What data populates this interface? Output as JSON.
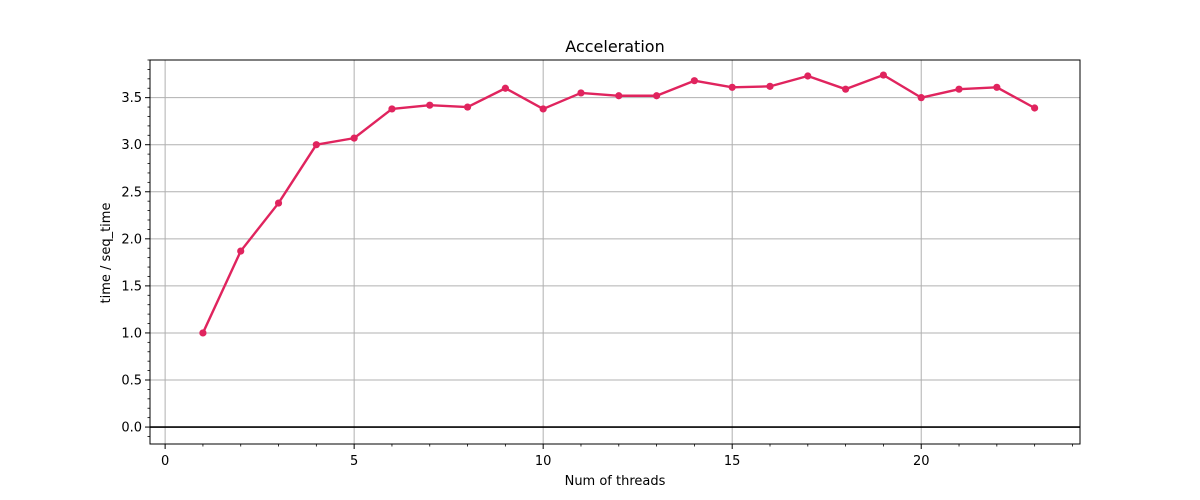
{
  "chart_data": {
    "type": "line",
    "title": "Acceleration",
    "xlabel": "Num of threads",
    "ylabel": "time / seq_time",
    "xlim": [
      -0.4,
      24.2
    ],
    "ylim": [
      -0.18,
      3.9
    ],
    "x_ticks": [
      0,
      5,
      10,
      15,
      20
    ],
    "y_ticks": [
      0.0,
      0.5,
      1.0,
      1.5,
      2.0,
      2.5,
      3.0,
      3.5
    ],
    "x_tick_labels": [
      "0",
      "5",
      "10",
      "15",
      "20"
    ],
    "y_tick_labels": [
      "0.0",
      "0.5",
      "1.0",
      "1.5",
      "2.0",
      "2.5",
      "3.0",
      "3.5"
    ],
    "grid": true,
    "baseline_y": 0,
    "series": [
      {
        "color": "#e0245e",
        "x": [
          1,
          2,
          3,
          4,
          5,
          6,
          7,
          8,
          9,
          10,
          11,
          12,
          13,
          14,
          15,
          16,
          17,
          18,
          19,
          20,
          21,
          22,
          23
        ],
        "values": [
          1.0,
          1.87,
          2.38,
          3.0,
          3.07,
          3.38,
          3.42,
          3.4,
          3.6,
          3.38,
          3.55,
          3.52,
          3.52,
          3.68,
          3.61,
          3.62,
          3.73,
          3.59,
          3.74,
          3.5,
          3.59,
          3.61,
          3.39
        ]
      }
    ]
  }
}
